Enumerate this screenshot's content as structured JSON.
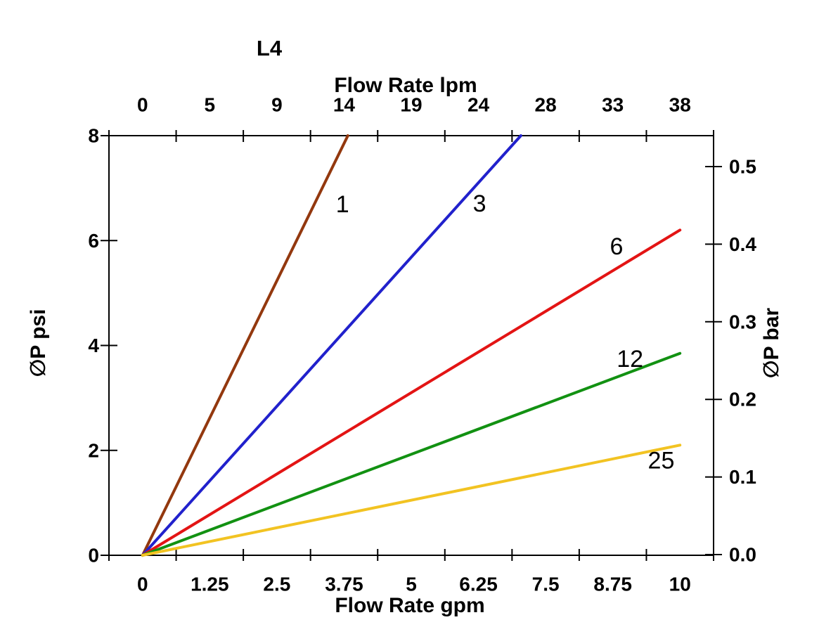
{
  "page": {
    "background": "#ffffff"
  },
  "chart_data": {
    "type": "line",
    "title": "L4",
    "grid": false,
    "legend": "inline-labels-on-lines",
    "axes": {
      "top": {
        "label": "Flow Rate lpm",
        "ticks": [
          "0",
          "5",
          "9",
          "14",
          "19",
          "24",
          "28",
          "33",
          "38"
        ]
      },
      "bottom": {
        "label": "Flow Rate gpm",
        "ticks": [
          "0",
          "1.25",
          "2.5",
          "3.75",
          "5",
          "6.25",
          "7.5",
          "8.75",
          "10"
        ],
        "range_gpm": [
          0,
          10
        ]
      },
      "left": {
        "label": "∅P psi",
        "ticks": [
          "8",
          "6",
          "4",
          "2",
          "0"
        ],
        "tick_values": [
          8,
          6,
          4,
          2,
          0
        ],
        "range_psi": [
          0,
          8
        ]
      },
      "right": {
        "label": "∅P bar",
        "ticks": [
          "0.5",
          "0.4",
          "0.3",
          "0.2",
          "0.1",
          "0.0"
        ],
        "tick_values": [
          0.5,
          0.4,
          0.3,
          0.2,
          0.1,
          0.0
        ]
      }
    },
    "series": [
      {
        "label": "1",
        "color": "#93380e",
        "points_gpm_psi": [
          [
            0,
            0
          ],
          [
            3.82,
            8
          ]
        ],
        "label_at_gpm_psi": [
          3.72,
          6.69
        ]
      },
      {
        "label": "3",
        "color": "#2121cc",
        "points_gpm_psi": [
          [
            0,
            0
          ],
          [
            7.04,
            8
          ]
        ],
        "label_at_gpm_psi": [
          6.27,
          6.7
        ]
      },
      {
        "label": "6",
        "color": "#e31414",
        "points_gpm_psi": [
          [
            0,
            0
          ],
          [
            10,
            6.2
          ]
        ],
        "label_at_gpm_psi": [
          8.82,
          5.88
        ]
      },
      {
        "label": "12",
        "color": "#129112",
        "points_gpm_psi": [
          [
            0,
            0
          ],
          [
            10,
            3.85
          ]
        ],
        "label_at_gpm_psi": [
          9.07,
          3.74
        ]
      },
      {
        "label": "25",
        "color": "#f2c322",
        "points_gpm_psi": [
          [
            0,
            0
          ],
          [
            10,
            2.1
          ]
        ],
        "label_at_gpm_psi": [
          9.65,
          1.8
        ]
      }
    ]
  }
}
